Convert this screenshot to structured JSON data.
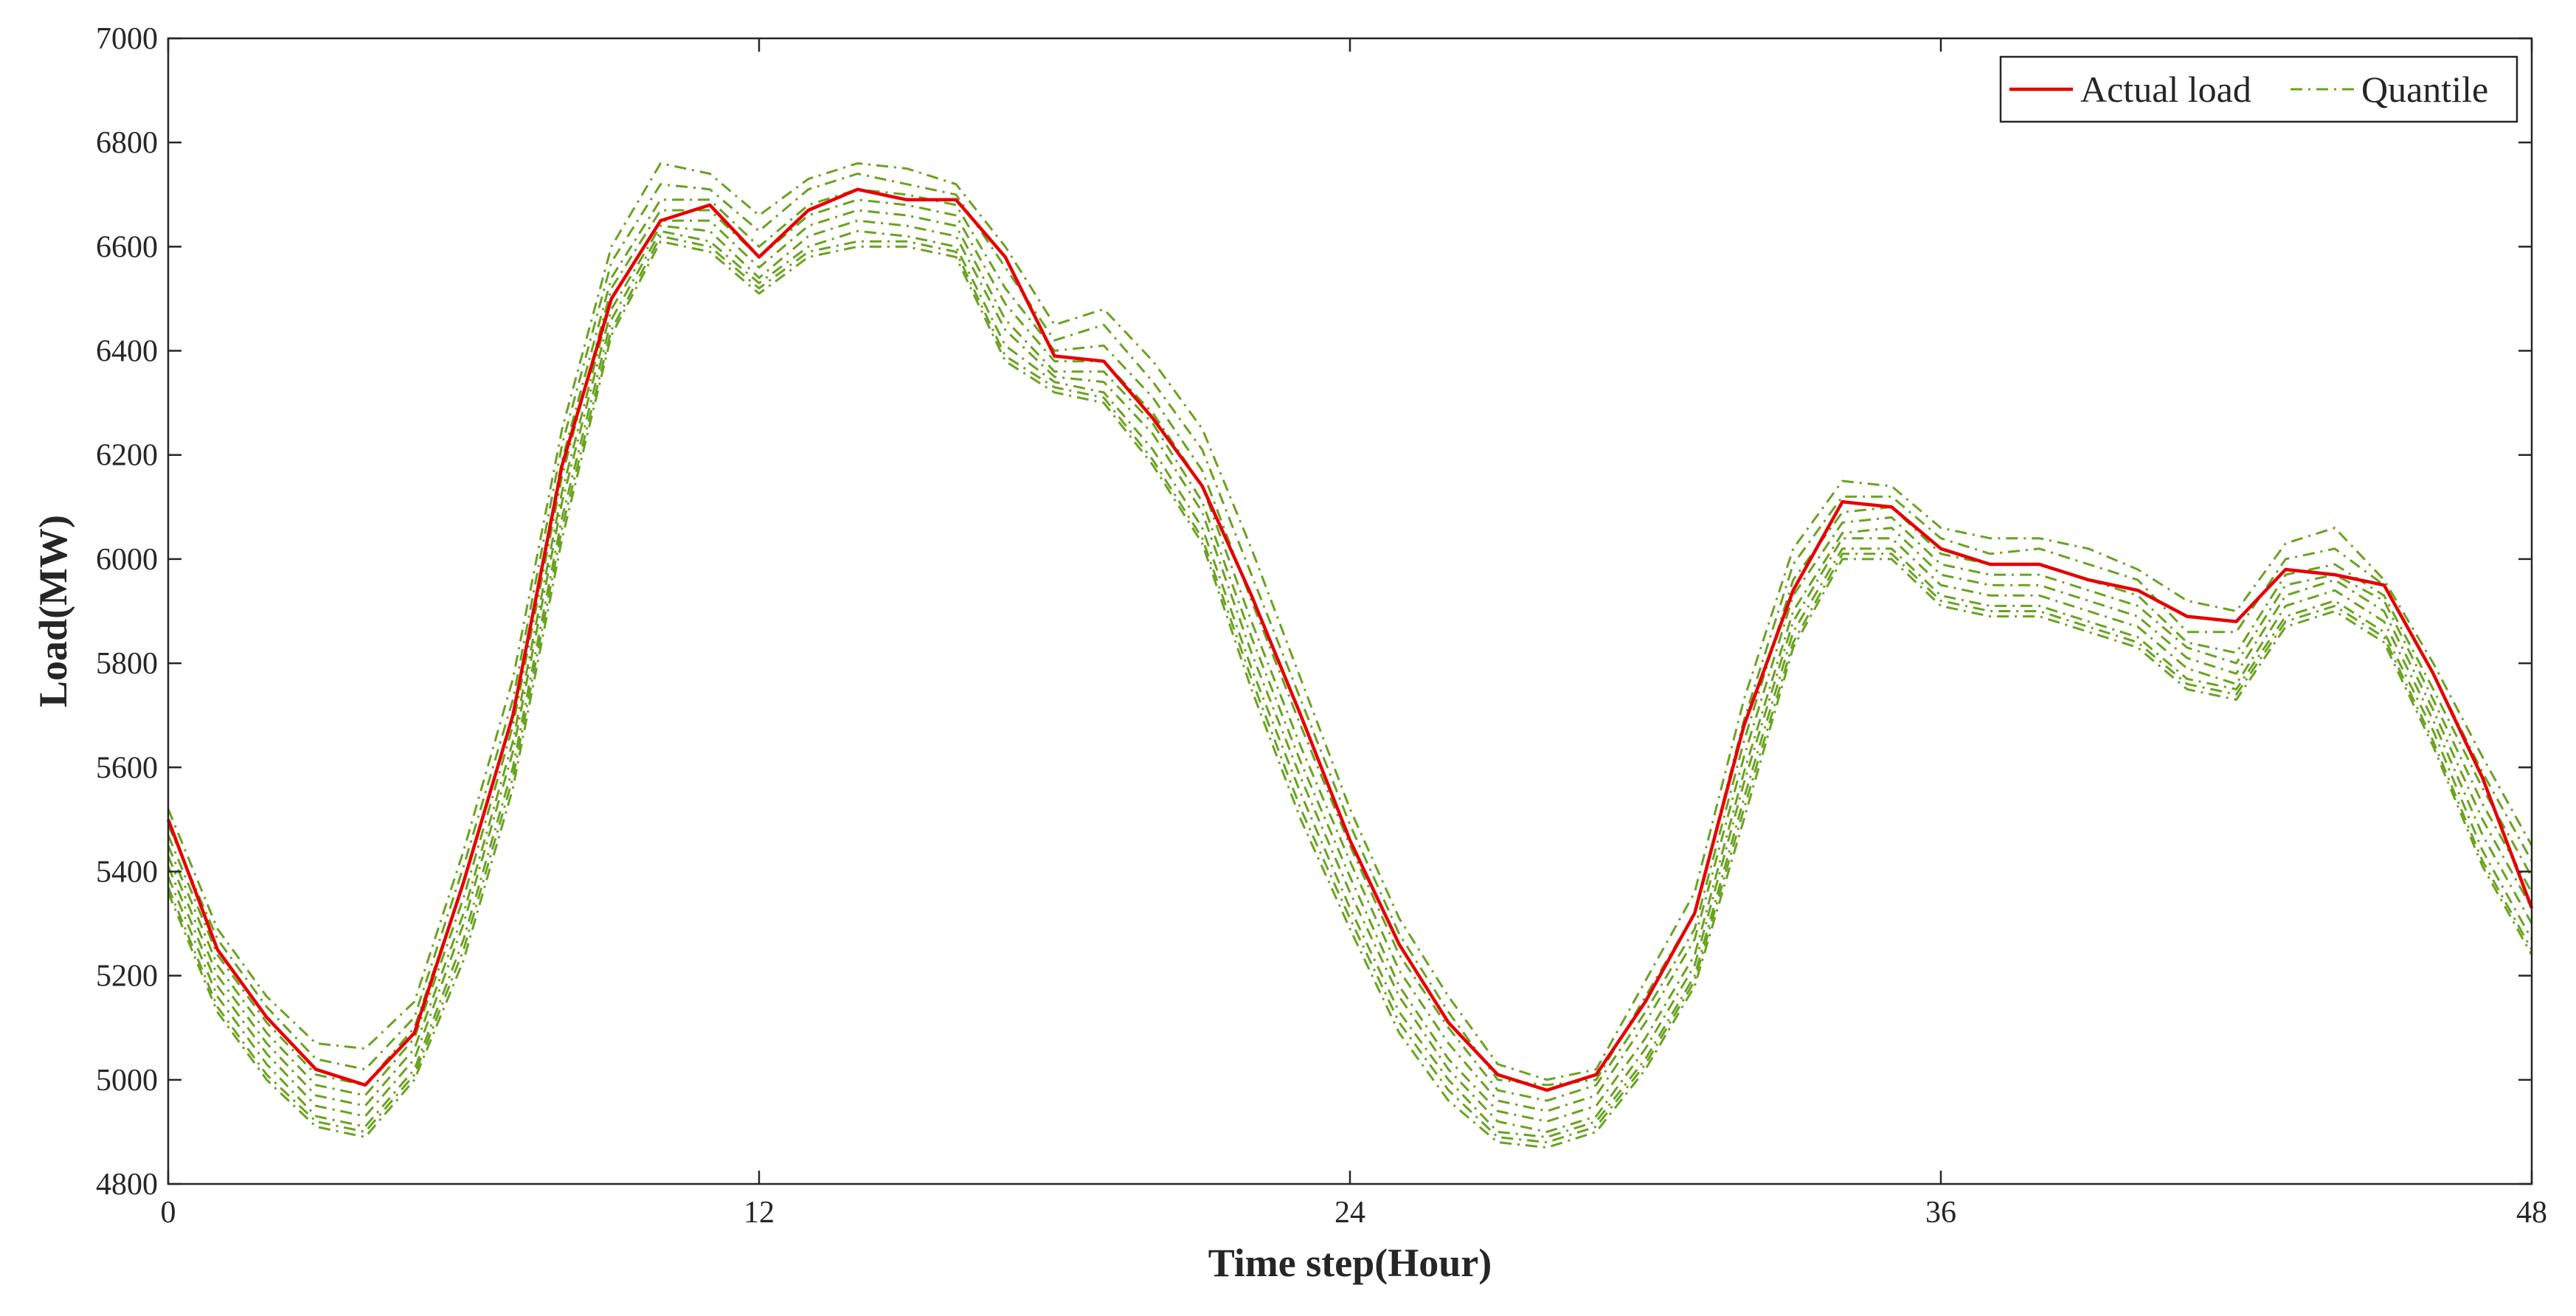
{
  "chart_data": {
    "type": "line",
    "title": "",
    "xlabel": "Time step(Hour)",
    "ylabel": "Load(MW)",
    "xlim": [
      0,
      48
    ],
    "ylim": [
      4800,
      7000
    ],
    "xticks": [
      0,
      12,
      24,
      36,
      48
    ],
    "yticks": [
      4800,
      5000,
      5200,
      5400,
      5600,
      5800,
      6000,
      6200,
      6400,
      6600,
      6800,
      7000
    ],
    "grid": false,
    "box": true,
    "legend": {
      "placement": "top-right",
      "entries": [
        "Actual load",
        "Quantile"
      ]
    },
    "x": [
      0,
      1,
      2,
      3,
      4,
      5,
      6,
      7,
      8,
      9,
      10,
      11,
      12,
      13,
      14,
      15,
      16,
      17,
      18,
      19,
      20,
      21,
      22,
      23,
      24,
      25,
      26,
      27,
      28,
      29,
      30,
      31,
      32,
      33,
      34,
      35,
      36,
      37,
      38,
      39,
      40,
      41,
      42,
      43,
      44,
      45,
      46,
      47,
      48
    ],
    "series": [
      {
        "name": "Actual load",
        "color": "#e60000",
        "style": "solid",
        "values": [
          5500,
          5250,
          5120,
          5020,
          4990,
          5090,
          5380,
          5700,
          6180,
          6500,
          6650,
          6680,
          6580,
          6670,
          6710,
          6690,
          6690,
          6580,
          6390,
          6380,
          6270,
          6140,
          5930,
          5700,
          5460,
          5260,
          5110,
          5010,
          4980,
          5010,
          5150,
          5320,
          5680,
          5940,
          6110,
          6100,
          6020,
          5990,
          5990,
          5960,
          5940,
          5890,
          5880,
          5980,
          5970,
          5950,
          5780,
          5580,
          5330
        ]
      },
      {
        "name": "Quantile",
        "color": "#6aa220",
        "style": "dashdot",
        "values": [
          5520,
          5290,
          5160,
          5070,
          5060,
          5150,
          5440,
          5770,
          6250,
          6600,
          6760,
          6740,
          6660,
          6730,
          6760,
          6750,
          6720,
          6600,
          6450,
          6480,
          6380,
          6250,
          6020,
          5770,
          5520,
          5310,
          5160,
          5030,
          5000,
          5020,
          5190,
          5360,
          5730,
          6020,
          6150,
          6140,
          6060,
          6040,
          6040,
          6020,
          5980,
          5920,
          5900,
          6030,
          6060,
          5960,
          5800,
          5620,
          5450
        ]
      },
      {
        "name": "",
        "color": "#6aa220",
        "style": "dashdot",
        "values": [
          5490,
          5270,
          5140,
          5040,
          5020,
          5120,
          5410,
          5730,
          6220,
          6570,
          6720,
          6710,
          6630,
          6710,
          6740,
          6720,
          6700,
          6560,
          6420,
          6450,
          6340,
          6210,
          5970,
          5730,
          5490,
          5280,
          5130,
          5000,
          4990,
          5000,
          5160,
          5320,
          5690,
          5990,
          6120,
          6120,
          6040,
          6010,
          6020,
          5990,
          5960,
          5860,
          5860,
          6000,
          6020,
          5950,
          5780,
          5590,
          5420
        ]
      },
      {
        "name": "",
        "color": "#6aa220",
        "style": "dashdot",
        "values": [
          5470,
          5240,
          5110,
          5010,
          4990,
          5100,
          5380,
          5700,
          6190,
          6540,
          6690,
          6690,
          6600,
          6680,
          6710,
          6700,
          6680,
          6520,
          6400,
          6410,
          6310,
          6170,
          5920,
          5680,
          5450,
          5240,
          5100,
          4980,
          4960,
          4990,
          5130,
          5290,
          5650,
          5960,
          6090,
          6100,
          6010,
          5990,
          5990,
          5960,
          5930,
          5840,
          5820,
          5970,
          5990,
          5930,
          5750,
          5560,
          5390
        ]
      },
      {
        "name": "",
        "color": "#6aa220",
        "style": "dashdot",
        "values": [
          5450,
          5220,
          5090,
          4990,
          4970,
          5080,
          5350,
          5680,
          6160,
          6520,
          6670,
          6670,
          6580,
          6660,
          6690,
          6680,
          6660,
          6490,
          6380,
          6380,
          6280,
          6140,
          5880,
          5640,
          5420,
          5210,
          5070,
          4960,
          4940,
          4970,
          5110,
          5270,
          5620,
          5930,
          6070,
          6080,
          5990,
          5970,
          5970,
          5940,
          5910,
          5830,
          5800,
          5950,
          5970,
          5920,
          5730,
          5530,
          5360
        ]
      },
      {
        "name": "",
        "color": "#6aa220",
        "style": "dashdot",
        "values": [
          5430,
          5200,
          5070,
          4970,
          4950,
          5060,
          5320,
          5650,
          6130,
          6500,
          6650,
          6650,
          6560,
          6640,
          6670,
          6660,
          6640,
          6460,
          6360,
          6360,
          6260,
          6110,
          5850,
          5610,
          5390,
          5180,
          5040,
          4940,
          4920,
          4950,
          5080,
          5240,
          5590,
          5900,
          6050,
          6060,
          5970,
          5950,
          5950,
          5920,
          5890,
          5810,
          5780,
          5930,
          5960,
          5900,
          5710,
          5500,
          5330
        ]
      },
      {
        "name": "",
        "color": "#6aa220",
        "style": "dashdot",
        "values": [
          5410,
          5180,
          5050,
          4950,
          4930,
          5040,
          5300,
          5630,
          6110,
          6480,
          6640,
          6630,
          6540,
          6620,
          6650,
          6640,
          6620,
          6440,
          6350,
          6340,
          6240,
          6090,
          5820,
          5580,
          5360,
          5160,
          5020,
          4920,
          4900,
          4930,
          5060,
          5220,
          5570,
          5880,
          6040,
          6040,
          5950,
          5930,
          5930,
          5900,
          5870,
          5790,
          5760,
          5910,
          5940,
          5880,
          5690,
          5470,
          5300
        ]
      },
      {
        "name": "",
        "color": "#6aa220",
        "style": "dashdot",
        "values": [
          5390,
          5160,
          5030,
          4930,
          4910,
          5020,
          5270,
          5600,
          6080,
          6460,
          6630,
          6610,
          6530,
          6600,
          6630,
          6620,
          6600,
          6410,
          6340,
          6320,
          6210,
          6060,
          5790,
          5550,
          5330,
          5130,
          5000,
          4900,
          4890,
          4920,
          5040,
          5200,
          5540,
          5860,
          6020,
          6020,
          5930,
          5910,
          5910,
          5880,
          5850,
          5770,
          5750,
          5890,
          5920,
          5860,
          5670,
          5440,
          5270
        ]
      },
      {
        "name": "",
        "color": "#6aa220",
        "style": "dashdot",
        "values": [
          5370,
          5140,
          5010,
          4920,
          4900,
          5010,
          5250,
          5580,
          6060,
          6440,
          6620,
          6600,
          6520,
          6590,
          6610,
          6610,
          6590,
          6390,
          6330,
          6310,
          6190,
          6040,
          5770,
          5520,
          5310,
          5110,
          4980,
          4890,
          4880,
          4910,
          5030,
          5190,
          5520,
          5840,
          6010,
          6010,
          5920,
          5900,
          5900,
          5870,
          5840,
          5760,
          5740,
          5880,
          5910,
          5850,
          5650,
          5420,
          5250
        ]
      },
      {
        "name": "",
        "color": "#6aa220",
        "style": "dashdot",
        "values": [
          5360,
          5130,
          5000,
          4910,
          4890,
          5000,
          5230,
          5560,
          6040,
          6430,
          6610,
          6590,
          6510,
          6580,
          6600,
          6600,
          6580,
          6380,
          6320,
          6300,
          6180,
          6030,
          5750,
          5500,
          5290,
          5090,
          4960,
          4880,
          4870,
          4900,
          5020,
          5180,
          5500,
          5830,
          6000,
          6000,
          5910,
          5890,
          5890,
          5860,
          5830,
          5750,
          5730,
          5870,
          5900,
          5840,
          5640,
          5410,
          5240
        ]
      }
    ]
  }
}
